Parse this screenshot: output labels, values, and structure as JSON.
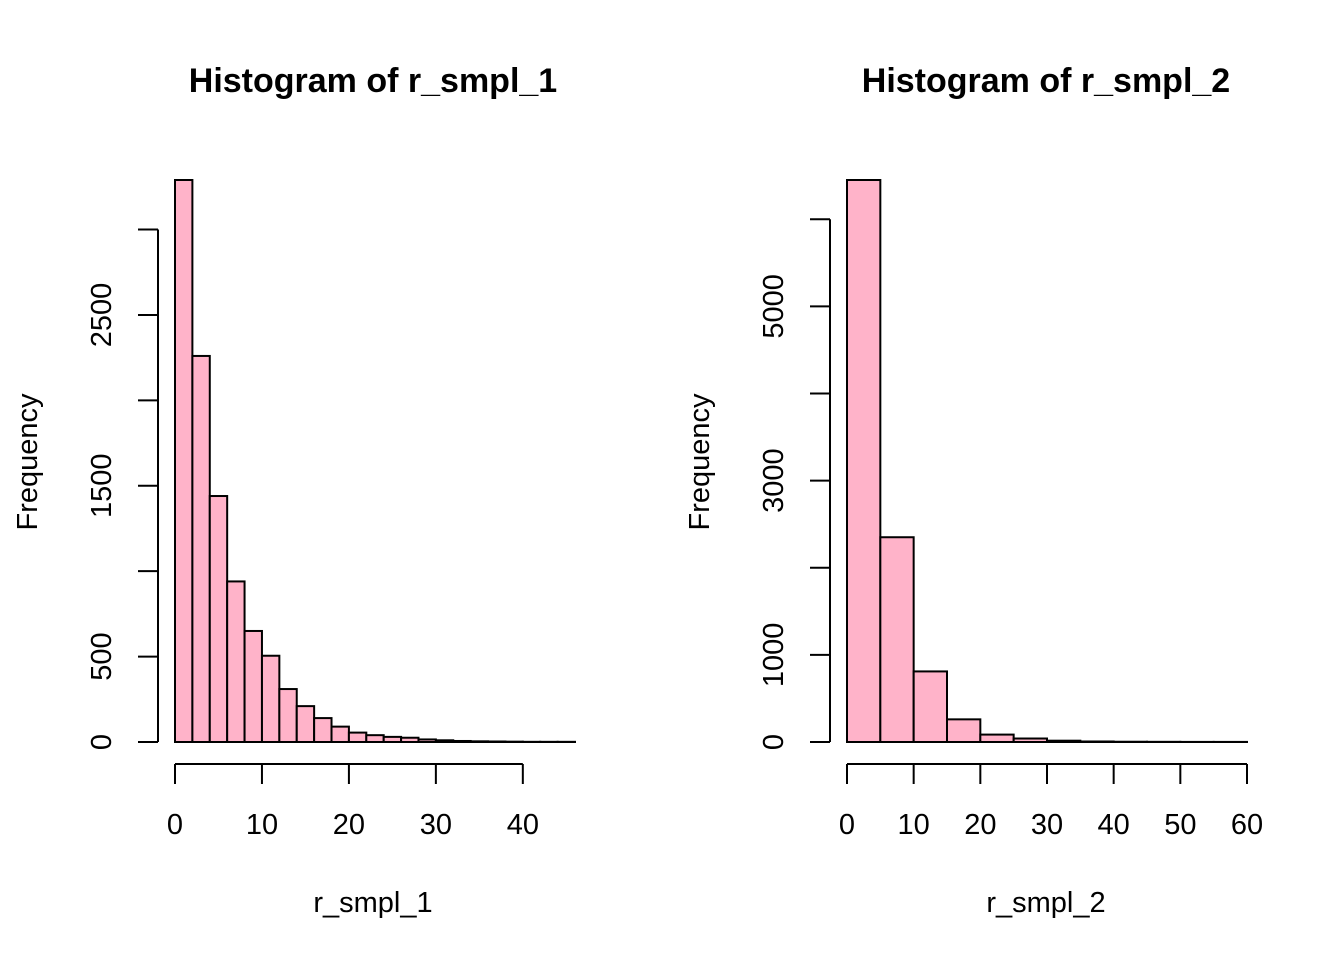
{
  "colors": {
    "bar_fill": "#FFB3C9",
    "bar_stroke": "#000000",
    "background": "#FFFFFF"
  },
  "chart_data": [
    {
      "type": "bar",
      "title": "Histogram of r_smpl_1",
      "xlabel": "r_smpl_1",
      "ylabel": "Frequency",
      "xlim": [
        0,
        46
      ],
      "ylim": [
        0,
        3290
      ],
      "x_ticks": [
        0,
        10,
        20,
        30,
        40
      ],
      "y_ticks": [
        0,
        500,
        1000,
        1500,
        2000,
        2500,
        3000
      ],
      "y_tick_labels": [
        "0",
        "500",
        "",
        "1500",
        "",
        "2500",
        ""
      ],
      "bin_edges": [
        0,
        2,
        4,
        6,
        8,
        10,
        12,
        14,
        16,
        18,
        20,
        22,
        24,
        26,
        28,
        30,
        32,
        34,
        36,
        38,
        40,
        42,
        44,
        46
      ],
      "values": [
        3290,
        2260,
        1440,
        940,
        650,
        505,
        310,
        210,
        140,
        90,
        55,
        40,
        30,
        25,
        15,
        10,
        6,
        4,
        3,
        2,
        1,
        1,
        1
      ]
    },
    {
      "type": "bar",
      "title": "Histogram of r_smpl_2",
      "xlabel": "r_smpl_2",
      "ylabel": "Frequency",
      "xlim": [
        0,
        60
      ],
      "ylim": [
        0,
        6450
      ],
      "x_ticks": [
        0,
        10,
        20,
        30,
        40,
        50,
        60
      ],
      "y_ticks": [
        0,
        1000,
        2000,
        3000,
        4000,
        5000,
        6000
      ],
      "y_tick_labels": [
        "0",
        "1000",
        "",
        "3000",
        "",
        "5000",
        ""
      ],
      "bin_edges": [
        0,
        5,
        10,
        15,
        20,
        25,
        30,
        35,
        40,
        45,
        50,
        55,
        60
      ],
      "values": [
        6450,
        2350,
        810,
        260,
        85,
        40,
        15,
        6,
        3,
        2,
        1,
        1
      ]
    }
  ]
}
